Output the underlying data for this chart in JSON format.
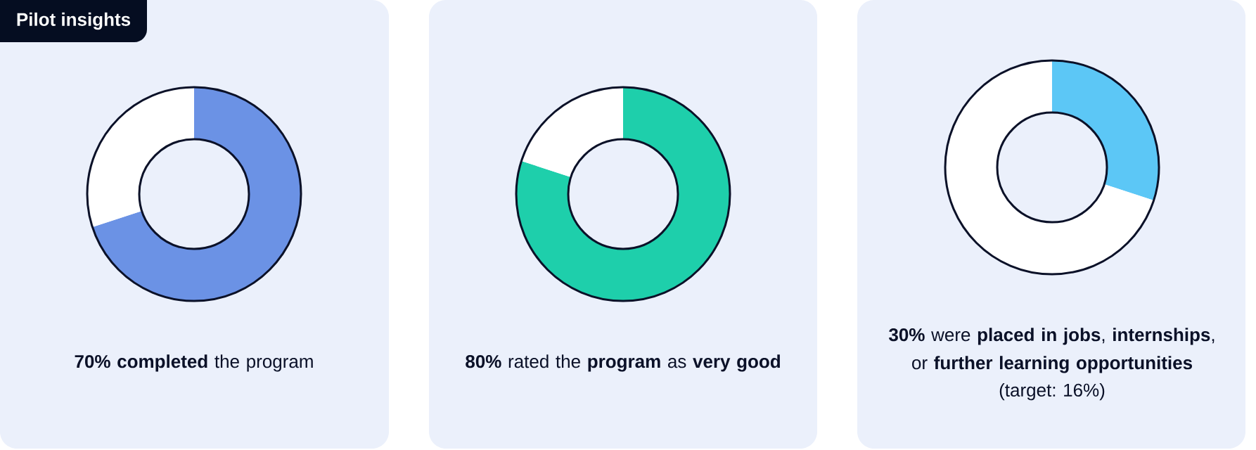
{
  "chart_data": [
    {
      "type": "donut",
      "title": "Pilot insights",
      "categories": [
        null,
        null
      ],
      "values": [
        70,
        30
      ],
      "colors": [
        "#6b92e5",
        "#ffffff"
      ],
      "annotations": [
        "**70% completed** the program"
      ]
    },
    {
      "type": "donut",
      "categories": [
        null,
        null
      ],
      "values": [
        80,
        20
      ],
      "colors": [
        "#1ecfab",
        "#ffffff"
      ],
      "annotations": [
        "**80%** rated the **program** as **very good**"
      ]
    },
    {
      "type": "donut",
      "categories": [
        null,
        null
      ],
      "values": [
        30,
        70
      ],
      "colors": [
        "#5cc7f6",
        "#ffffff"
      ],
      "annotations": [
        "**30%** were **placed in jobs**, **internships**, or **further learning opportunities**",
        "(target: 16%)"
      ]
    }
  ]
}
